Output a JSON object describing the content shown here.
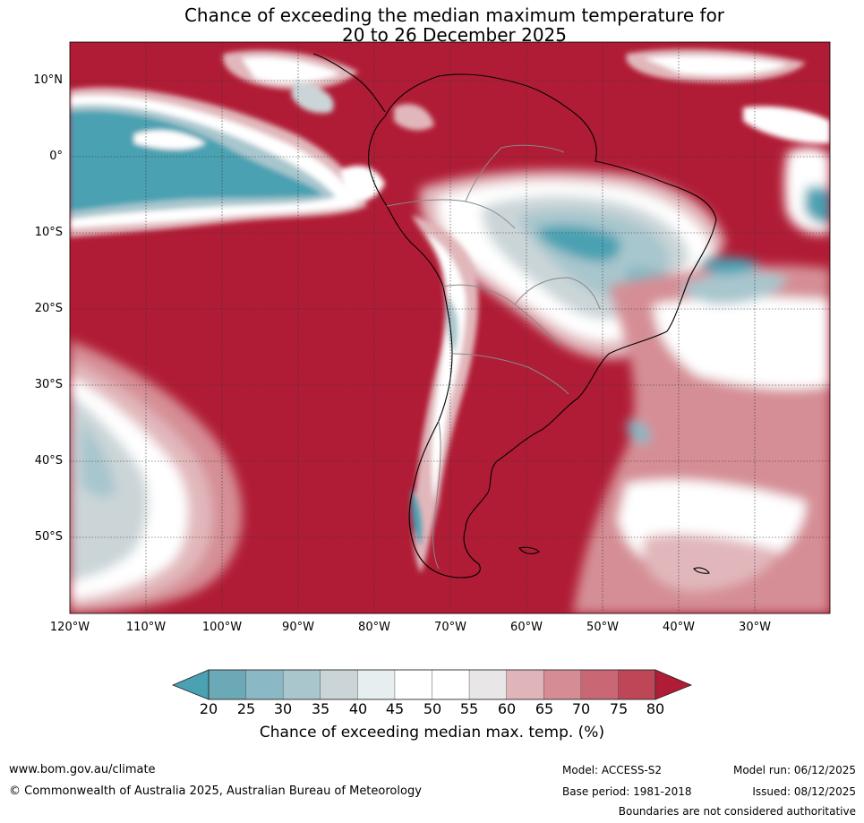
{
  "title": {
    "line1": "Chance of exceeding the median maximum temperature for",
    "line2": "20 to 26 December 2025"
  },
  "map": {
    "lat_labels": [
      "10°N",
      "0°",
      "10°S",
      "20°S",
      "30°S",
      "40°S",
      "50°S"
    ],
    "lon_labels": [
      "120°W",
      "110°W",
      "100°W",
      "90°W",
      "80°W",
      "70°W",
      "60°W",
      "50°W",
      "40°W",
      "30°W"
    ],
    "colors": {
      "hot80": "#b01c35",
      "hot75": "#c44253",
      "hot70": "#cc6a74",
      "hot65": "#d58e95",
      "hot60": "#e1b7bb",
      "neutral55": "#ebe9e9",
      "neutral50": "#ffffff",
      "cool40": "#e7eef0",
      "cool35": "#cbd5d8",
      "cool30": "#a8c6cd",
      "cool25": "#86b7c3",
      "cool20": "#64a8b5",
      "cool_low": "#4aa1b2"
    }
  },
  "colorbar": {
    "ticks": [
      "20",
      "25",
      "30",
      "35",
      "40",
      "45",
      "50",
      "55",
      "60",
      "65",
      "70",
      "75",
      "80"
    ],
    "label": "Chance of exceeding median max. temp. (%)",
    "segment_colors": [
      "#6aa9b5",
      "#8ab8c4",
      "#a9c6cd",
      "#cbd5d8",
      "#e7eef0",
      "#ffffff",
      "#ffffff",
      "#e8e6e7",
      "#e0b5ba",
      "#d68c95",
      "#c96774",
      "#bf4656"
    ],
    "low_color": "#4aa1b2",
    "high_color": "#b01c35"
  },
  "footer": {
    "website": "www.bom.gov.au/climate",
    "copyright": "© Commonwealth of Australia 2025, Australian Bureau of Meteorology",
    "model": "Model: ACCESS-S2",
    "base_period": "Base period: 1981-2018",
    "model_run": "Model run: 06/12/2025",
    "issued": "Issued: 08/12/2025",
    "disclaimer": "Boundaries are not considered authoritative"
  }
}
